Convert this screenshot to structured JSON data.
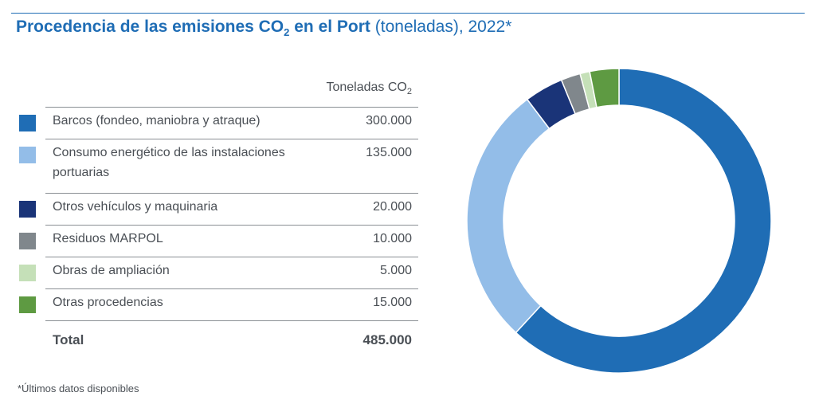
{
  "title": {
    "bold": "Procedencia de las emisiones  CO",
    "bold_sub": "2",
    "bold_rest": " en el Port",
    "normal": " (toneladas), 2022*"
  },
  "table": {
    "header": "Toneladas CO",
    "header_sub": "2",
    "rows": [
      {
        "label": "Barcos (fondeo, maniobra y atraque)",
        "value": "300.000",
        "color": "#1f6db5"
      },
      {
        "label": "Consumo energético de las instalaciones portuarias",
        "value": "135.000",
        "color": "#93bde8"
      },
      {
        "label": "Otros vehículos y maquinaria",
        "value": "20.000",
        "color": "#1a3478"
      },
      {
        "label": "Residuos MARPOL",
        "value": "10.000",
        "color": "#80878c"
      },
      {
        "label": "Obras de ampliación",
        "value": "5.000",
        "color": "#c5e0b8"
      },
      {
        "label": "Otras procedencias",
        "value": "15.000",
        "color": "#5e9a42"
      }
    ],
    "total_label": "Total",
    "total_value": "485.000"
  },
  "footnote": "*Últimos datos disponibles",
  "chart_data": {
    "type": "pie",
    "variant": "donut",
    "start": "top",
    "direction": "clockwise",
    "categories": [
      "Barcos (fondeo, maniobra y atraque)",
      "Consumo energético de las instalaciones portuarias",
      "Otros vehículos y maquinaria",
      "Residuos MARPOL",
      "Obras de ampliación",
      "Otras procedencias"
    ],
    "values": [
      300000,
      135000,
      20000,
      10000,
      5000,
      15000
    ],
    "colors": [
      "#1f6db5",
      "#93bde8",
      "#1a3478",
      "#80878c",
      "#c5e0b8",
      "#5e9a42"
    ]
  }
}
